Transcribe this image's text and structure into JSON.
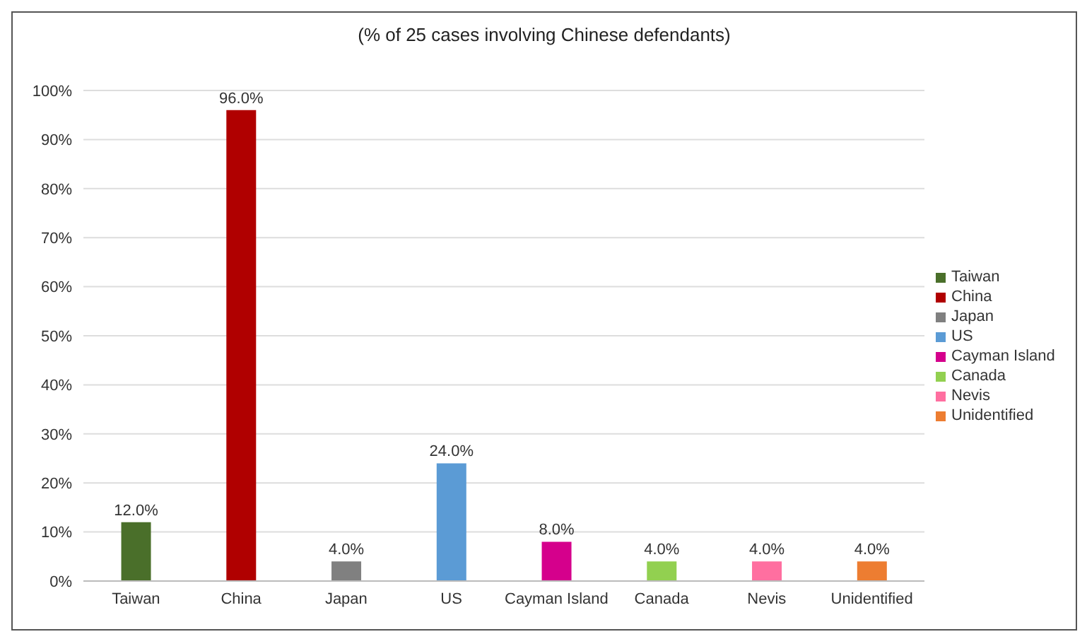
{
  "chart_data": {
    "type": "bar",
    "title": "(% of 25 cases involving Chinese defendants)",
    "categories": [
      "Taiwan",
      "China",
      "Japan",
      "US",
      "Cayman Island",
      "Canada",
      "Nevis",
      "Unidentified"
    ],
    "series": [
      {
        "name": "Taiwan",
        "color": "#4a6f2a",
        "values": [
          12,
          null,
          null,
          null,
          null,
          null,
          null,
          null
        ],
        "value_labels": [
          "12.0%",
          null,
          null,
          null,
          null,
          null,
          null,
          null
        ]
      },
      {
        "name": "China",
        "color": "#b00000",
        "values": [
          null,
          96,
          null,
          null,
          null,
          null,
          null,
          null
        ],
        "value_labels": [
          null,
          "96.0%",
          null,
          null,
          null,
          null,
          null,
          null
        ]
      },
      {
        "name": "Japan",
        "color": "#808080",
        "values": [
          null,
          null,
          4,
          null,
          null,
          null,
          null,
          null
        ],
        "value_labels": [
          null,
          null,
          "4.0%",
          null,
          null,
          null,
          null,
          null
        ]
      },
      {
        "name": "US",
        "color": "#5b9bd5",
        "values": [
          null,
          null,
          null,
          24,
          null,
          null,
          null,
          null
        ],
        "value_labels": [
          null,
          null,
          null,
          "24.0%",
          null,
          null,
          null,
          null
        ]
      },
      {
        "name": "Cayman Island",
        "color": "#d5008c",
        "values": [
          null,
          null,
          null,
          null,
          8,
          null,
          null,
          null
        ],
        "value_labels": [
          null,
          null,
          null,
          null,
          "8.0%",
          null,
          null,
          null
        ]
      },
      {
        "name": "Canada",
        "color": "#92d050",
        "values": [
          null,
          null,
          null,
          null,
          null,
          4,
          null,
          null
        ],
        "value_labels": [
          null,
          null,
          null,
          null,
          null,
          "4.0%",
          null,
          null
        ]
      },
      {
        "name": "Nevis",
        "color": "#ff6fa0",
        "values": [
          null,
          null,
          null,
          null,
          null,
          null,
          4,
          null
        ],
        "value_labels": [
          null,
          null,
          null,
          null,
          null,
          null,
          "4.0%",
          null
        ]
      },
      {
        "name": "Unidentified",
        "color": "#ed7d31",
        "values": [
          null,
          null,
          null,
          null,
          null,
          null,
          null,
          4
        ],
        "value_labels": [
          null,
          null,
          null,
          null,
          null,
          null,
          null,
          "4.0%"
        ]
      }
    ],
    "stacked": true,
    "ylim": [
      0,
      100
    ],
    "yticks": [
      {
        "value": 0,
        "label": "0%"
      },
      {
        "value": 10,
        "label": "10%"
      },
      {
        "value": 20,
        "label": "20%"
      },
      {
        "value": 30,
        "label": "30%"
      },
      {
        "value": 40,
        "label": "40%"
      },
      {
        "value": 50,
        "label": "50%"
      },
      {
        "value": 60,
        "label": "60%"
      },
      {
        "value": 70,
        "label": "70%"
      },
      {
        "value": 80,
        "label": "80%"
      },
      {
        "value": 90,
        "label": "90%"
      },
      {
        "value": 100,
        "label": "100%"
      }
    ],
    "grid": "y",
    "legend": "right"
  }
}
